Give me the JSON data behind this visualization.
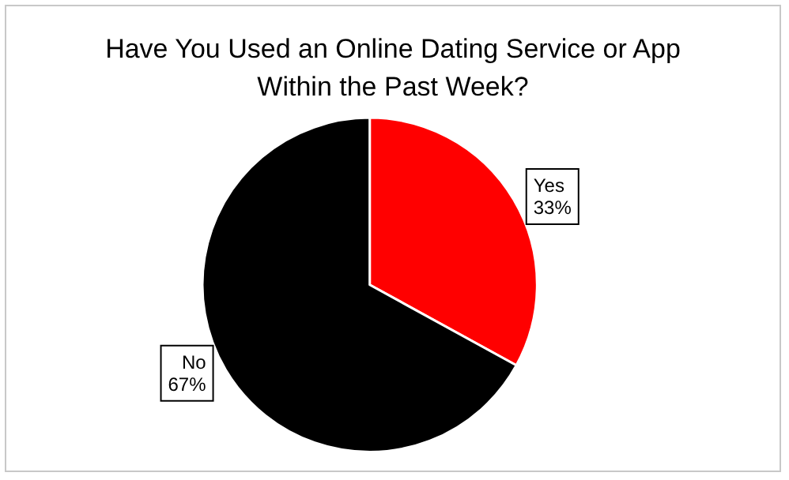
{
  "chart_data": {
    "type": "pie",
    "title": "Have You Used an Online Dating Service or App\nWithin the Past Week?",
    "categories": [
      "Yes",
      "No"
    ],
    "values": [
      33,
      67
    ],
    "colors": [
      "#ff0000",
      "#000000"
    ],
    "value_labels": [
      "33%",
      "67%"
    ]
  }
}
